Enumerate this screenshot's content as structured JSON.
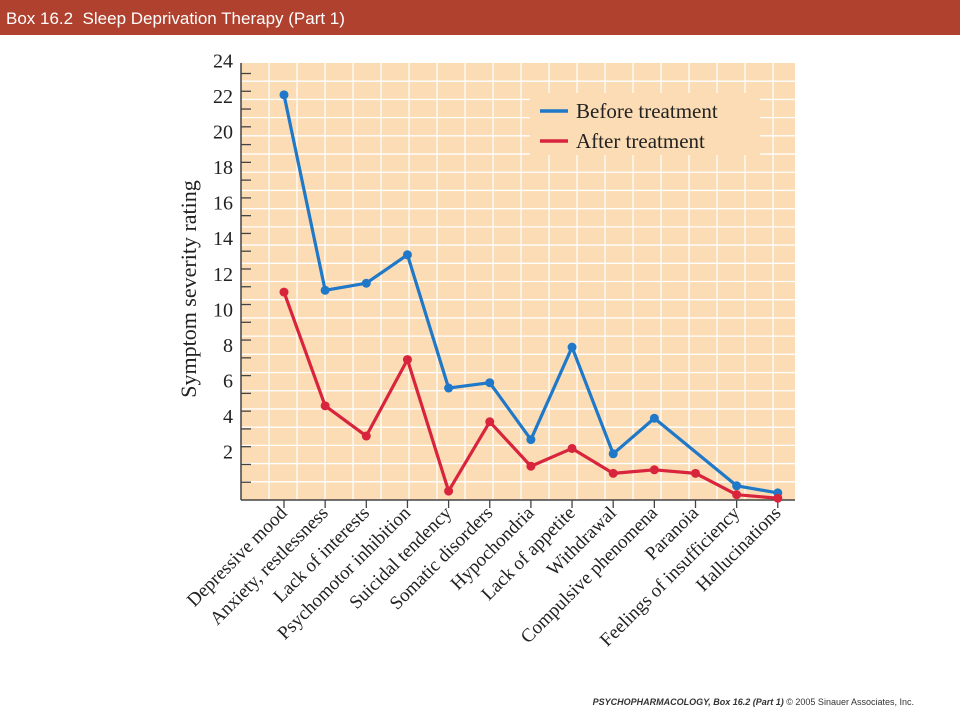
{
  "header": {
    "title": "Box 16.2  Sleep Deprivation Therapy (Part 1)"
  },
  "footer": {
    "publisher_bold": "PSYCHOPHARMACOLOGY, Box 16.2 (Part 1)",
    "copyright": " © 2005 Sinauer Associates, Inc."
  },
  "colors": {
    "header_bg": "#b0412e",
    "plot_bg": "#fbdcb4",
    "grid": "#ffffff",
    "before": "#1f78c8",
    "after": "#d8243c"
  },
  "chart_data": {
    "type": "line",
    "title": "",
    "xlabel": "",
    "ylabel": "Symptom severity rating",
    "ylim": [
      0,
      24
    ],
    "yticks": [
      "2",
      "4",
      "6",
      "8",
      "10",
      "12",
      "14",
      "16",
      "18",
      "20",
      "22",
      "24"
    ],
    "grid": true,
    "legend_position": "top-right",
    "categories": [
      "Depressive mood",
      "Anxiety, restlessness",
      "Lack of interests",
      "Psychomotor inhibition",
      "Suicidal tendency",
      "Somatic disorders",
      "Hypochondria",
      "Lack of appetite",
      "Withdrawal",
      "Compulsive phenomena",
      "Paranoia",
      "Feelings of insufficiency",
      "Hallucinations"
    ],
    "series": [
      {
        "name": "Before treatment",
        "color": "#1f78c8",
        "values": [
          22.8,
          11.8,
          12.2,
          13.8,
          6.3,
          6.6,
          3.4,
          8.6,
          2.6,
          4.6,
          null,
          0.8,
          0.4
        ]
      },
      {
        "name": "After treatment",
        "color": "#d8243c",
        "values": [
          11.7,
          5.3,
          3.6,
          7.9,
          0.5,
          4.4,
          1.9,
          2.9,
          1.5,
          1.7,
          1.5,
          0.3,
          0.1
        ]
      }
    ]
  }
}
